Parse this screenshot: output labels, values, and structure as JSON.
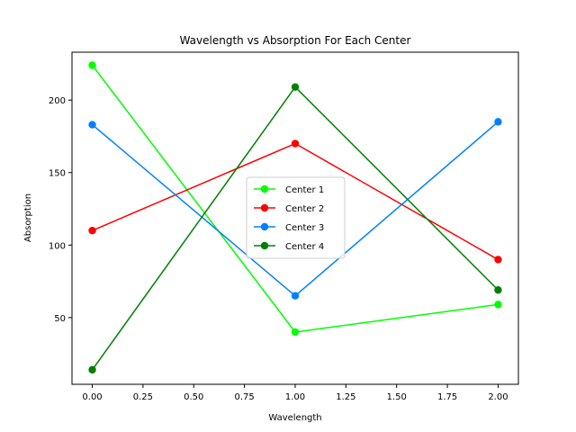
{
  "chart_data": {
    "type": "line",
    "title": "Wavelength vs Absorption For Each Center",
    "xlabel": "Wavelength",
    "ylabel": "Absorption",
    "x": [
      0,
      1,
      2
    ],
    "xlim": [
      -0.1,
      2.1
    ],
    "ylim": [
      4,
      233
    ],
    "xticks": [
      "0.00",
      "0.25",
      "0.50",
      "0.75",
      "1.00",
      "1.25",
      "1.50",
      "1.75",
      "2.00"
    ],
    "xtick_values": [
      0,
      0.25,
      0.5,
      0.75,
      1.0,
      1.25,
      1.5,
      1.75,
      2.0
    ],
    "yticks": [
      "50",
      "100",
      "150",
      "200"
    ],
    "ytick_values": [
      50,
      100,
      150,
      200
    ],
    "grid": false,
    "legend_position": "center",
    "series": [
      {
        "name": "Center 1",
        "color": "#00ff00",
        "values": [
          224,
          40,
          59
        ],
        "marker": "circle"
      },
      {
        "name": "Center 2",
        "color": "#ff0000",
        "values": [
          110,
          170,
          90
        ],
        "marker": "circle"
      },
      {
        "name": "Center 3",
        "color": "#0080ff",
        "values": [
          183,
          65,
          185
        ],
        "marker": "circle"
      },
      {
        "name": "Center 4",
        "color": "#008000",
        "values": [
          14,
          209,
          69
        ],
        "marker": "circle"
      }
    ]
  }
}
